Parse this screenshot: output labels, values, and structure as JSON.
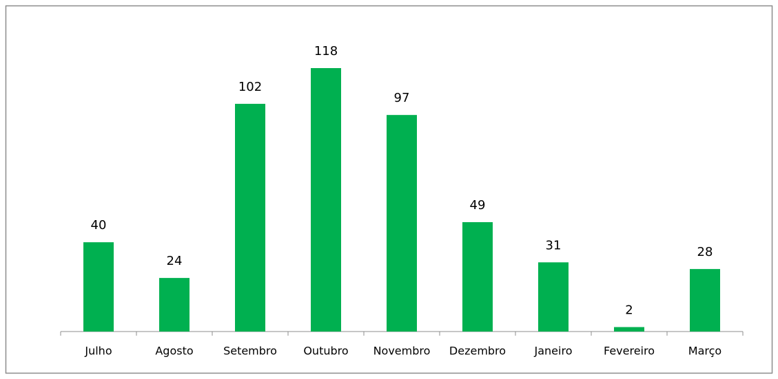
{
  "chart_data": {
    "type": "bar",
    "categories": [
      "Julho",
      "Agosto",
      "Setembro",
      "Outubro",
      "Novembro",
      "Dezembro",
      "Janeiro",
      "Fevereiro",
      "Março"
    ],
    "values": [
      40,
      24,
      102,
      118,
      97,
      49,
      31,
      2,
      28
    ],
    "color": "#00b050",
    "ylim": [
      0,
      140
    ]
  }
}
